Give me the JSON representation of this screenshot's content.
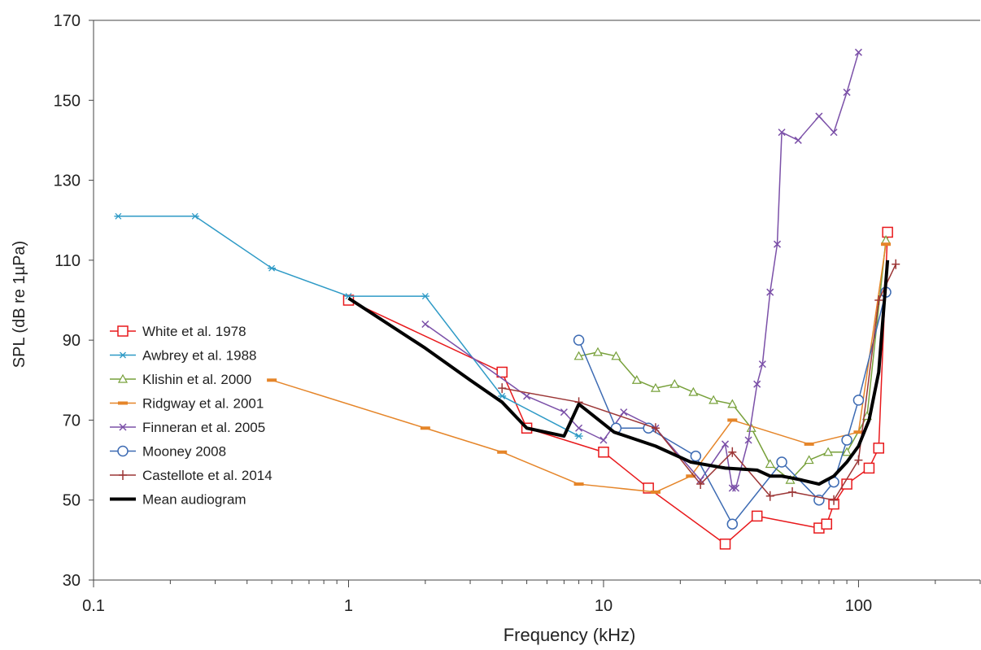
{
  "chart_data": {
    "type": "line",
    "title": "",
    "xlabel": "Frequency (kHz)",
    "ylabel": "SPL (dB re 1µPa)",
    "x_scale": "log",
    "xlim": [
      0.1,
      300
    ],
    "ylim": [
      30,
      170
    ],
    "x_ticks": [
      {
        "value": 0.1,
        "label": "0.1"
      },
      {
        "value": 1,
        "label": "1"
      },
      {
        "value": 10,
        "label": "10"
      },
      {
        "value": 100,
        "label": "100"
      }
    ],
    "y_ticks": [
      30,
      50,
      70,
      90,
      110,
      130,
      150,
      170
    ],
    "grid": false,
    "legend_position": "left",
    "series": [
      {
        "name": "White et al. 1978",
        "color": "#e8191c",
        "marker": "square",
        "line_width": 1.5,
        "points": [
          [
            1,
            100
          ],
          [
            4,
            82
          ],
          [
            5,
            68
          ],
          [
            10,
            62
          ],
          [
            15,
            53
          ],
          [
            30,
            39
          ],
          [
            40,
            46
          ],
          [
            70,
            43
          ],
          [
            75,
            44
          ],
          [
            80,
            49
          ],
          [
            90,
            54
          ],
          [
            110,
            58
          ],
          [
            120,
            63
          ],
          [
            130,
            117
          ]
        ]
      },
      {
        "name": "Awbrey et al. 1988",
        "color": "#2e9ac6",
        "marker": "star",
        "line_width": 1.5,
        "points": [
          [
            0.125,
            121
          ],
          [
            0.25,
            121
          ],
          [
            0.5,
            108
          ],
          [
            1,
            101
          ],
          [
            2,
            101
          ],
          [
            4,
            76
          ],
          [
            8,
            66
          ]
        ]
      },
      {
        "name": "Klishin et al. 2000",
        "color": "#77a03a",
        "marker": "triangle",
        "line_width": 1.5,
        "points": [
          [
            8,
            86
          ],
          [
            9.5,
            87
          ],
          [
            11.2,
            86
          ],
          [
            13.5,
            80
          ],
          [
            16,
            78
          ],
          [
            19,
            79
          ],
          [
            22.5,
            77
          ],
          [
            27,
            75
          ],
          [
            32,
            74
          ],
          [
            38,
            68
          ],
          [
            45,
            59
          ],
          [
            54,
            55
          ],
          [
            64,
            60
          ],
          [
            76,
            62
          ],
          [
            90,
            62
          ],
          [
            108,
            71
          ],
          [
            128,
            115
          ]
        ]
      },
      {
        "name": "Ridgway et al. 2001",
        "color": "#e58529",
        "marker": "dash",
        "line_width": 1.5,
        "points": [
          [
            0.5,
            80
          ],
          [
            2,
            68
          ],
          [
            4,
            62
          ],
          [
            8,
            54
          ],
          [
            16,
            52
          ],
          [
            22,
            56
          ],
          [
            32,
            70
          ],
          [
            64,
            64
          ],
          [
            100,
            67
          ],
          [
            128,
            114
          ]
        ]
      },
      {
        "name": "Finneran et al. 2005",
        "color": "#7b50a8",
        "marker": "x",
        "line_width": 1.5,
        "points": [
          [
            2,
            94
          ],
          [
            5,
            76
          ],
          [
            7,
            72
          ],
          [
            8,
            68
          ],
          [
            10,
            65
          ],
          [
            12,
            72
          ],
          [
            16,
            68
          ],
          [
            24,
            55
          ],
          [
            30,
            64
          ],
          [
            32,
            53
          ],
          [
            33,
            53
          ],
          [
            37,
            65
          ],
          [
            40,
            79
          ],
          [
            42,
            84
          ],
          [
            45,
            102
          ],
          [
            48,
            114
          ],
          [
            50,
            142
          ],
          [
            58,
            140
          ],
          [
            70,
            146
          ],
          [
            80,
            142
          ],
          [
            90,
            152
          ],
          [
            100,
            162
          ]
        ]
      },
      {
        "name": "Mooney 2008",
        "color": "#3d6bb3",
        "marker": "circle",
        "line_width": 1.5,
        "points": [
          [
            8,
            90
          ],
          [
            11.2,
            68
          ],
          [
            15,
            68
          ],
          [
            23,
            61
          ],
          [
            32,
            44
          ],
          [
            50,
            59.5
          ],
          [
            70,
            50
          ],
          [
            80,
            54.5
          ],
          [
            90,
            65
          ],
          [
            100,
            75
          ],
          [
            128,
            102
          ]
        ]
      },
      {
        "name": "Castellote et al. 2014",
        "color": "#9c3636",
        "marker": "plus",
        "line_width": 1.5,
        "points": [
          [
            4,
            78
          ],
          [
            8,
            74.5
          ],
          [
            16,
            68
          ],
          [
            24,
            54
          ],
          [
            32,
            62
          ],
          [
            45,
            51
          ],
          [
            55,
            52
          ],
          [
            80,
            50
          ],
          [
            100,
            60
          ],
          [
            120,
            100
          ],
          [
            140,
            109
          ]
        ]
      },
      {
        "name": "Mean audiogram",
        "color": "#000000",
        "marker": "none",
        "line_width": 4,
        "points": [
          [
            1,
            100.5
          ],
          [
            2,
            88
          ],
          [
            3,
            80
          ],
          [
            4,
            74.5
          ],
          [
            5,
            68
          ],
          [
            7,
            66
          ],
          [
            8,
            74
          ],
          [
            11,
            67
          ],
          [
            16,
            63.5
          ],
          [
            22,
            59.5
          ],
          [
            30,
            58
          ],
          [
            40,
            57.5
          ],
          [
            45,
            56
          ],
          [
            50,
            56
          ],
          [
            55,
            55.5
          ],
          [
            60,
            55
          ],
          [
            70,
            54
          ],
          [
            80,
            56
          ],
          [
            90,
            59.5
          ],
          [
            100,
            63.5
          ],
          [
            110,
            70
          ],
          [
            120,
            82
          ],
          [
            130,
            110
          ]
        ]
      }
    ]
  }
}
